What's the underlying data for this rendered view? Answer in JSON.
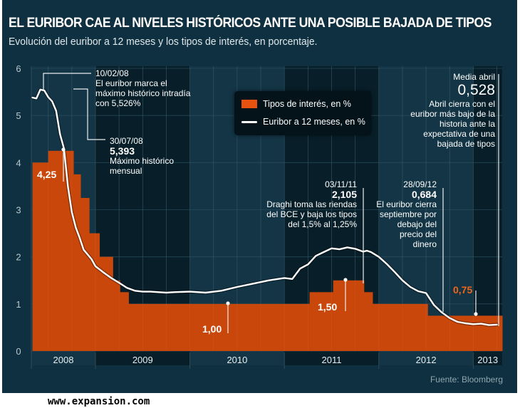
{
  "header": {
    "title": "EL EURIBOR CAE AL NIVELES HISTÓRICOS ANTE UNA POSIBLE BAJADA DE TIPOS",
    "subtitle": "Evolución del euribor a 12 meses y los tipos de interés, en porcentaje."
  },
  "colors": {
    "background": "#0f3040",
    "rate_bar": "#c9470b",
    "legend_rate": "#e8520f",
    "euribor_line": "#ffffff",
    "highlight_label": "#f0651c"
  },
  "legend": {
    "items": [
      {
        "label": "Tipos de interés, en %",
        "type": "bar"
      },
      {
        "label": "Euribor a 12 meses, en %",
        "type": "line"
      }
    ]
  },
  "annotations": {
    "a1": {
      "date": "10/02/08",
      "text": [
        "El euribor marca el",
        "máximo histórico intradía",
        "con 5,526%"
      ]
    },
    "a2": {
      "date": "30/07/08",
      "value": "5,393",
      "text": [
        "Máximo histórico",
        "mensual"
      ]
    },
    "a3": {
      "date": "03/11/11",
      "value": "2,105",
      "text": [
        "Draghi toma las riendas",
        "del BCE y baja los tipos",
        "del 1,5% al 1,25%"
      ]
    },
    "a4": {
      "date": "28/09/12",
      "value": "0,684",
      "text": [
        "El euribor cierra",
        "septiembre por",
        "debajo del",
        "precio del",
        "dinero"
      ]
    },
    "a5": {
      "date": "Media abril",
      "value": "0,528",
      "text": [
        "Abril cierra con el",
        "euribor más bajo de la",
        "historia ante la",
        "expectativa de una",
        "bajada de tipos"
      ]
    }
  },
  "rate_labels": [
    "4,25",
    "1,00",
    "1,50",
    "0,75"
  ],
  "source": "Fuente: Bloomberg",
  "site": "www.expansion.com",
  "chart_data": {
    "type": "bar+line",
    "title": "EL EURIBOR CAE AL NIVELES HISTÓRICOS ANTE UNA POSIBLE BAJADA DE TIPOS",
    "subtitle": "Evolución del euribor a 12 meses y los tipos de interés, en porcentaje.",
    "xlabel": "",
    "ylabel": "",
    "ylim": [
      0,
      6
    ],
    "yticks": [
      0,
      1,
      2,
      3,
      4,
      5,
      6
    ],
    "year_labels": [
      "2008",
      "2009",
      "2010",
      "2011",
      "2012",
      "2013"
    ],
    "x_unit": "months since Jan 2008",
    "xlim": [
      4,
      52
    ],
    "grid": true,
    "legend_position": "top-center",
    "series": [
      {
        "name": "Tipos de interés, en %",
        "type": "step-area",
        "steps": [
          {
            "x0": 4,
            "x1": 6,
            "value": 4.0
          },
          {
            "x0": 6,
            "x1": 9.2,
            "value": 4.25
          },
          {
            "x0": 9.2,
            "x1": 10.1,
            "value": 3.75
          },
          {
            "x0": 10.1,
            "x1": 11.2,
            "value": 3.25
          },
          {
            "x0": 11.2,
            "x1": 12.5,
            "value": 2.5
          },
          {
            "x0": 12.5,
            "x1": 14.2,
            "value": 2.0
          },
          {
            "x0": 14.2,
            "x1": 15.1,
            "value": 1.5
          },
          {
            "x0": 15.1,
            "x1": 16.2,
            "value": 1.25
          },
          {
            "x0": 16.2,
            "x1": 39.2,
            "value": 1.0
          },
          {
            "x0": 39.2,
            "x1": 42.2,
            "value": 1.25
          },
          {
            "x0": 42.2,
            "x1": 46.1,
            "value": 1.5
          },
          {
            "x0": 46.1,
            "x1": 47.2,
            "value": 1.25
          },
          {
            "x0": 47.2,
            "x1": 54.2,
            "value": 1.0
          },
          {
            "x0": 54.2,
            "x1": 64,
            "value": 0.75
          }
        ]
      },
      {
        "name": "Euribor a 12 meses, en %",
        "type": "line",
        "x": [
          0,
          0.5,
          1,
          1.3,
          1.5,
          2,
          2.5,
          3,
          3.5,
          4,
          4.5,
          5,
          5.5,
          6,
          6.5,
          7,
          7.5,
          8,
          8.5,
          9,
          9.5,
          10,
          10.5,
          11,
          11.5,
          12,
          13,
          14,
          15,
          16,
          17,
          18,
          19,
          20,
          21,
          22,
          24,
          26,
          28,
          30,
          32,
          34,
          36,
          37,
          38,
          39,
          40,
          41,
          42,
          43,
          44,
          45,
          46,
          46.5,
          47,
          48,
          49,
          50,
          51,
          52,
          53,
          54,
          55,
          56,
          57,
          58,
          59,
          60,
          61,
          62,
          63,
          64,
          64.6,
          65,
          65.5,
          66,
          66.5,
          67
        ],
        "values": [
          4.97,
          5.0,
          5.08,
          5.15,
          5.45,
          5.45,
          5.42,
          5.44,
          5.35,
          5.38,
          5.36,
          5.55,
          5.53,
          5.39,
          5.3,
          5.1,
          4.6,
          4.3,
          3.5,
          2.95,
          2.62,
          2.4,
          2.15,
          2.05,
          1.95,
          1.8,
          1.67,
          1.55,
          1.45,
          1.34,
          1.28,
          1.26,
          1.26,
          1.25,
          1.24,
          1.25,
          1.26,
          1.24,
          1.28,
          1.36,
          1.43,
          1.5,
          1.55,
          1.53,
          1.75,
          1.84,
          2.02,
          2.1,
          2.18,
          2.16,
          2.2,
          2.17,
          2.11,
          2.13,
          2.1,
          2.0,
          1.85,
          1.68,
          1.5,
          1.36,
          1.27,
          1.23,
          0.98,
          0.82,
          0.7,
          0.62,
          0.59,
          0.57,
          0.58,
          0.55,
          0.56,
          0.6,
          0.56,
          0.58,
          0.53,
          0.54,
          0.53,
          0.52
        ]
      }
    ],
    "annotations": [
      {
        "date": "10/02/08",
        "value": 5.526,
        "text": "El euribor marca el máximo histórico intradía con 5,526%"
      },
      {
        "date": "30/07/08",
        "value": 5.393,
        "text": "Máximo histórico mensual"
      },
      {
        "date": "03/11/11",
        "value": 2.105,
        "text": "Draghi toma las riendas del BCE y baja los tipos del 1,5% al 1,25%"
      },
      {
        "date": "28/09/12",
        "value": 0.684,
        "text": "El euribor cierra septiembre por debajo del precio del dinero"
      },
      {
        "date": "Media abril",
        "value": 0.528,
        "text": "Abril cierra con el euribor más bajo de la historia ante la expectativa de una bajada de tipos"
      }
    ],
    "rate_point_labels": [
      {
        "label": "4,25",
        "value": 4.25
      },
      {
        "label": "1,00",
        "value": 1.0
      },
      {
        "label": "1,50",
        "value": 1.5
      },
      {
        "label": "0,75",
        "value": 0.75
      }
    ],
    "source": "Fuente: Bloomberg"
  }
}
